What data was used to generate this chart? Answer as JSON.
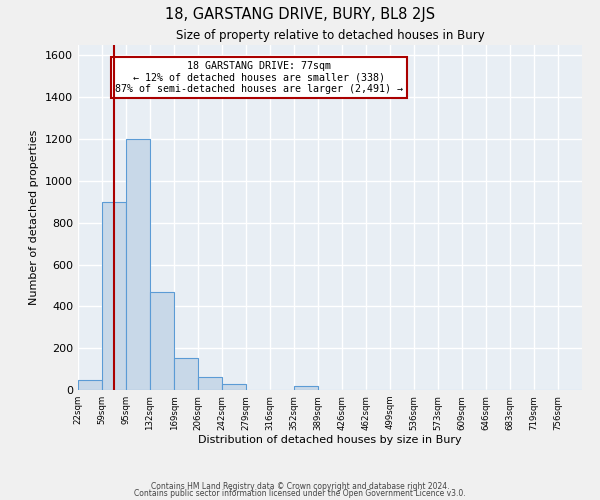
{
  "title": "18, GARSTANG DRIVE, BURY, BL8 2JS",
  "subtitle": "Size of property relative to detached houses in Bury",
  "xlabel": "Distribution of detached houses by size in Bury",
  "ylabel": "Number of detached properties",
  "bin_labels": [
    "22sqm",
    "59sqm",
    "95sqm",
    "132sqm",
    "169sqm",
    "206sqm",
    "242sqm",
    "279sqm",
    "316sqm",
    "352sqm",
    "389sqm",
    "426sqm",
    "462sqm",
    "499sqm",
    "536sqm",
    "573sqm",
    "609sqm",
    "646sqm",
    "683sqm",
    "719sqm",
    "756sqm"
  ],
  "bar_heights": [
    50,
    900,
    1200,
    470,
    155,
    60,
    30,
    0,
    0,
    20,
    0,
    0,
    0,
    0,
    0,
    0,
    0,
    0,
    0,
    0,
    0
  ],
  "bar_color": "#c8d8e8",
  "bar_edge_color": "#5b9bd5",
  "bg_color": "#e8eef4",
  "grid_color": "#ffffff",
  "vline_x": 77,
  "vline_color": "#aa0000",
  "annotation_line1": "18 GARSTANG DRIVE: 77sqm",
  "annotation_line2": "← 12% of detached houses are smaller (338)",
  "annotation_line3": "87% of semi-detached houses are larger (2,491) →",
  "annotation_box_edge_color": "#aa0000",
  "ylim": [
    0,
    1650
  ],
  "yticks": [
    0,
    200,
    400,
    600,
    800,
    1000,
    1200,
    1400,
    1600
  ],
  "footer1": "Contains HM Land Registry data © Crown copyright and database right 2024.",
  "footer2": "Contains public sector information licensed under the Open Government Licence v3.0.",
  "bin_edges": [
    22,
    59,
    95,
    132,
    169,
    206,
    242,
    279,
    316,
    352,
    389,
    426,
    462,
    499,
    536,
    573,
    609,
    646,
    683,
    719,
    756,
    793
  ],
  "fig_bg_color": "#f0f0f0"
}
